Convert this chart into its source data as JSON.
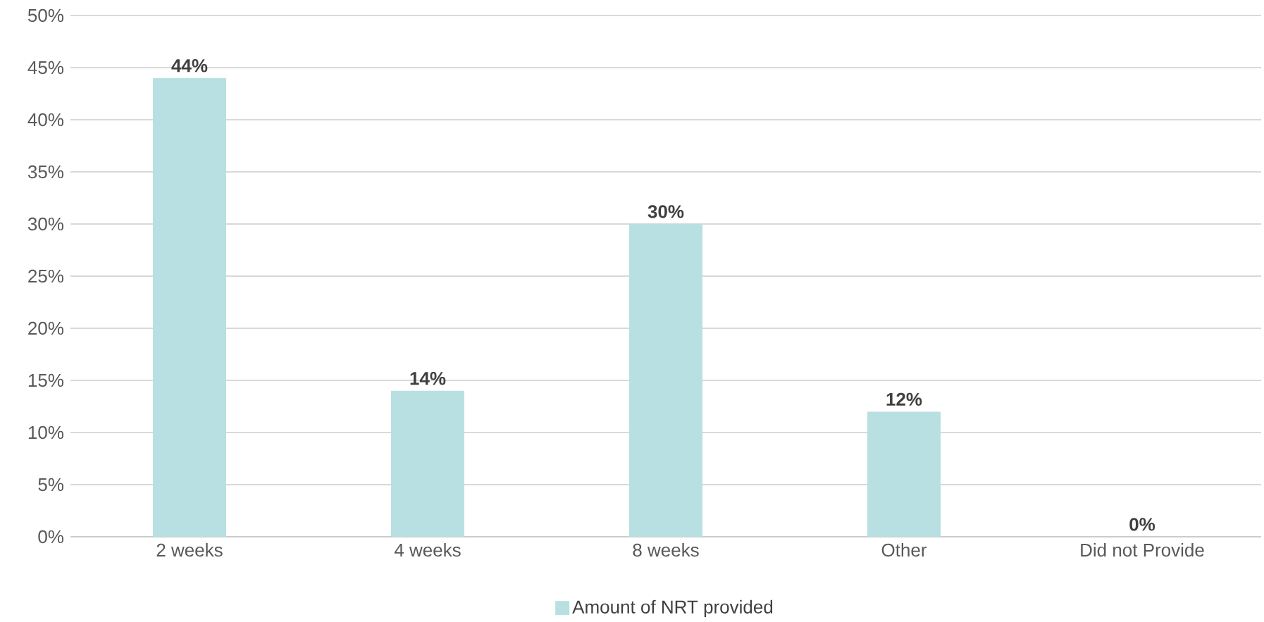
{
  "chart_data": {
    "type": "bar",
    "categories": [
      "2 weeks",
      "4 weeks",
      "8 weeks",
      "Other",
      "Did not Provide"
    ],
    "series": [
      {
        "name": "Amount of NRT provided",
        "color": "#b8e0e2",
        "values": [
          44,
          14,
          30,
          12,
          0
        ]
      }
    ],
    "value_labels": [
      "44%",
      "14%",
      "30%",
      "12%",
      "0%"
    ],
    "ylim": [
      0,
      50
    ],
    "yticks": [
      {
        "value": 0,
        "label": "0%"
      },
      {
        "value": 5,
        "label": "5%"
      },
      {
        "value": 10,
        "label": "10%"
      },
      {
        "value": 15,
        "label": "15%"
      },
      {
        "value": 20,
        "label": "20%"
      },
      {
        "value": 25,
        "label": "25%"
      },
      {
        "value": 30,
        "label": "30%"
      },
      {
        "value": 35,
        "label": "35%"
      },
      {
        "value": 40,
        "label": "40%"
      },
      {
        "value": 45,
        "label": "45%"
      },
      {
        "value": 50,
        "label": "50%"
      }
    ],
    "grid": "y",
    "legend": "bottom"
  }
}
